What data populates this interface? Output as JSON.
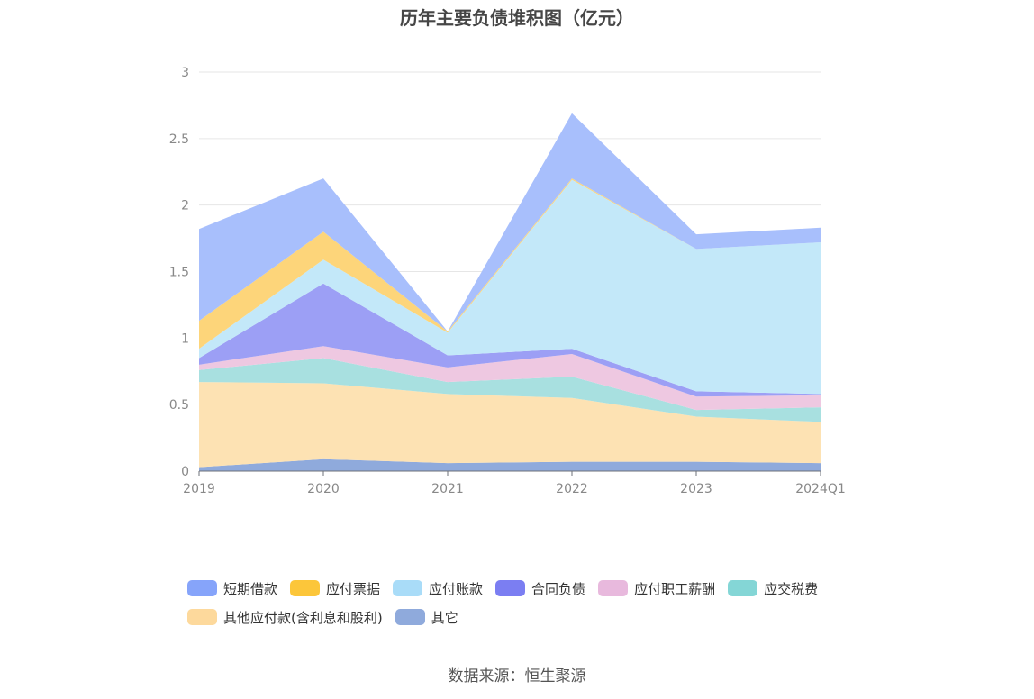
{
  "chart_data": {
    "type": "area",
    "title": "历年主要负债堆积图（亿元）",
    "stacked": true,
    "categories": [
      "2019",
      "2020",
      "2021",
      "2022",
      "2023",
      "2024Q1"
    ],
    "ylim": [
      0,
      3
    ],
    "yticks": [
      "0",
      "0.5",
      "1",
      "1.5",
      "2",
      "2.5",
      "3"
    ],
    "grid": true,
    "legend_position": "bottom",
    "series": [
      {
        "name": "其它",
        "color": "#8faadc",
        "values": [
          0.03,
          0.09,
          0.06,
          0.07,
          0.07,
          0.06
        ]
      },
      {
        "name": "其他应付款(含利息和股利)",
        "color": "#fde2b3",
        "values": [
          0.64,
          0.57,
          0.52,
          0.48,
          0.34,
          0.31
        ]
      },
      {
        "name": "应交税费",
        "color": "#a8e0e0",
        "values": [
          0.09,
          0.19,
          0.09,
          0.16,
          0.05,
          0.11
        ]
      },
      {
        "name": "应付职工薪酬",
        "color": "#eec8e1",
        "values": [
          0.04,
          0.09,
          0.11,
          0.17,
          0.1,
          0.09
        ]
      },
      {
        "name": "合同负债",
        "color": "#9c9ff5",
        "values": [
          0.05,
          0.47,
          0.09,
          0.04,
          0.04,
          0.01
        ]
      },
      {
        "name": "应付账款",
        "color": "#c3e8f9",
        "values": [
          0.07,
          0.18,
          0.17,
          1.27,
          1.07,
          1.14
        ]
      },
      {
        "name": "应付票据",
        "color": "#fdd57a",
        "values": [
          0.21,
          0.21,
          0.01,
          0.01,
          0.0,
          0.0
        ]
      },
      {
        "name": "短期借款",
        "color": "#a8bffc",
        "values": [
          0.69,
          0.4,
          0.0,
          0.49,
          0.11,
          0.11
        ]
      }
    ]
  },
  "legend": [
    {
      "label": "短期借款",
      "color": "#86a4fa"
    },
    {
      "label": "应付票据",
      "color": "#fcc63a"
    },
    {
      "label": "应付账款",
      "color": "#a9dcf8"
    },
    {
      "label": "合同负债",
      "color": "#7b7ef2"
    },
    {
      "label": "应付职工薪酬",
      "color": "#e8b9dd"
    },
    {
      "label": "应交税费",
      "color": "#84d6d6"
    },
    {
      "label": "其他应付款(含利息和股利)",
      "color": "#fdd99c"
    },
    {
      "label": "其它",
      "color": "#8faadc"
    }
  ],
  "source": "数据来源：恒生聚源"
}
